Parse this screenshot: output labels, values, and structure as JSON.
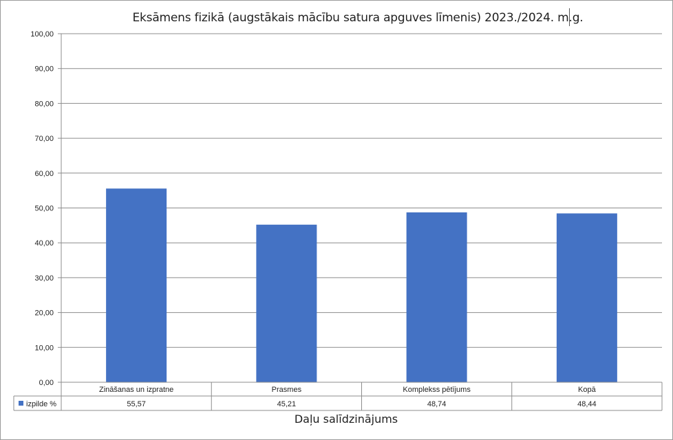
{
  "chart_data": {
    "type": "bar",
    "title": "Eksāmens fizikā (augstākais mācību satura apguves līmenis) 2023./2024. m.g.",
    "xlabel": "Daļu salīdzinājums",
    "ylabel": "",
    "ylim": [
      0,
      100
    ],
    "yticks": [
      "0,00",
      "10,00",
      "20,00",
      "30,00",
      "40,00",
      "50,00",
      "60,00",
      "70,00",
      "80,00",
      "90,00",
      "100,00"
    ],
    "categories": [
      "Zināšanas un izpratne",
      "Prasmes",
      "Komplekss pētījums",
      "Kopā"
    ],
    "series": [
      {
        "name": "izpilde %",
        "values": [
          55.57,
          45.21,
          48.74,
          48.44
        ],
        "value_labels": [
          "55,57",
          "45,21",
          "48,74",
          "48,44"
        ],
        "color": "#4472c4"
      }
    ],
    "grid": true,
    "legend": "data-table"
  }
}
